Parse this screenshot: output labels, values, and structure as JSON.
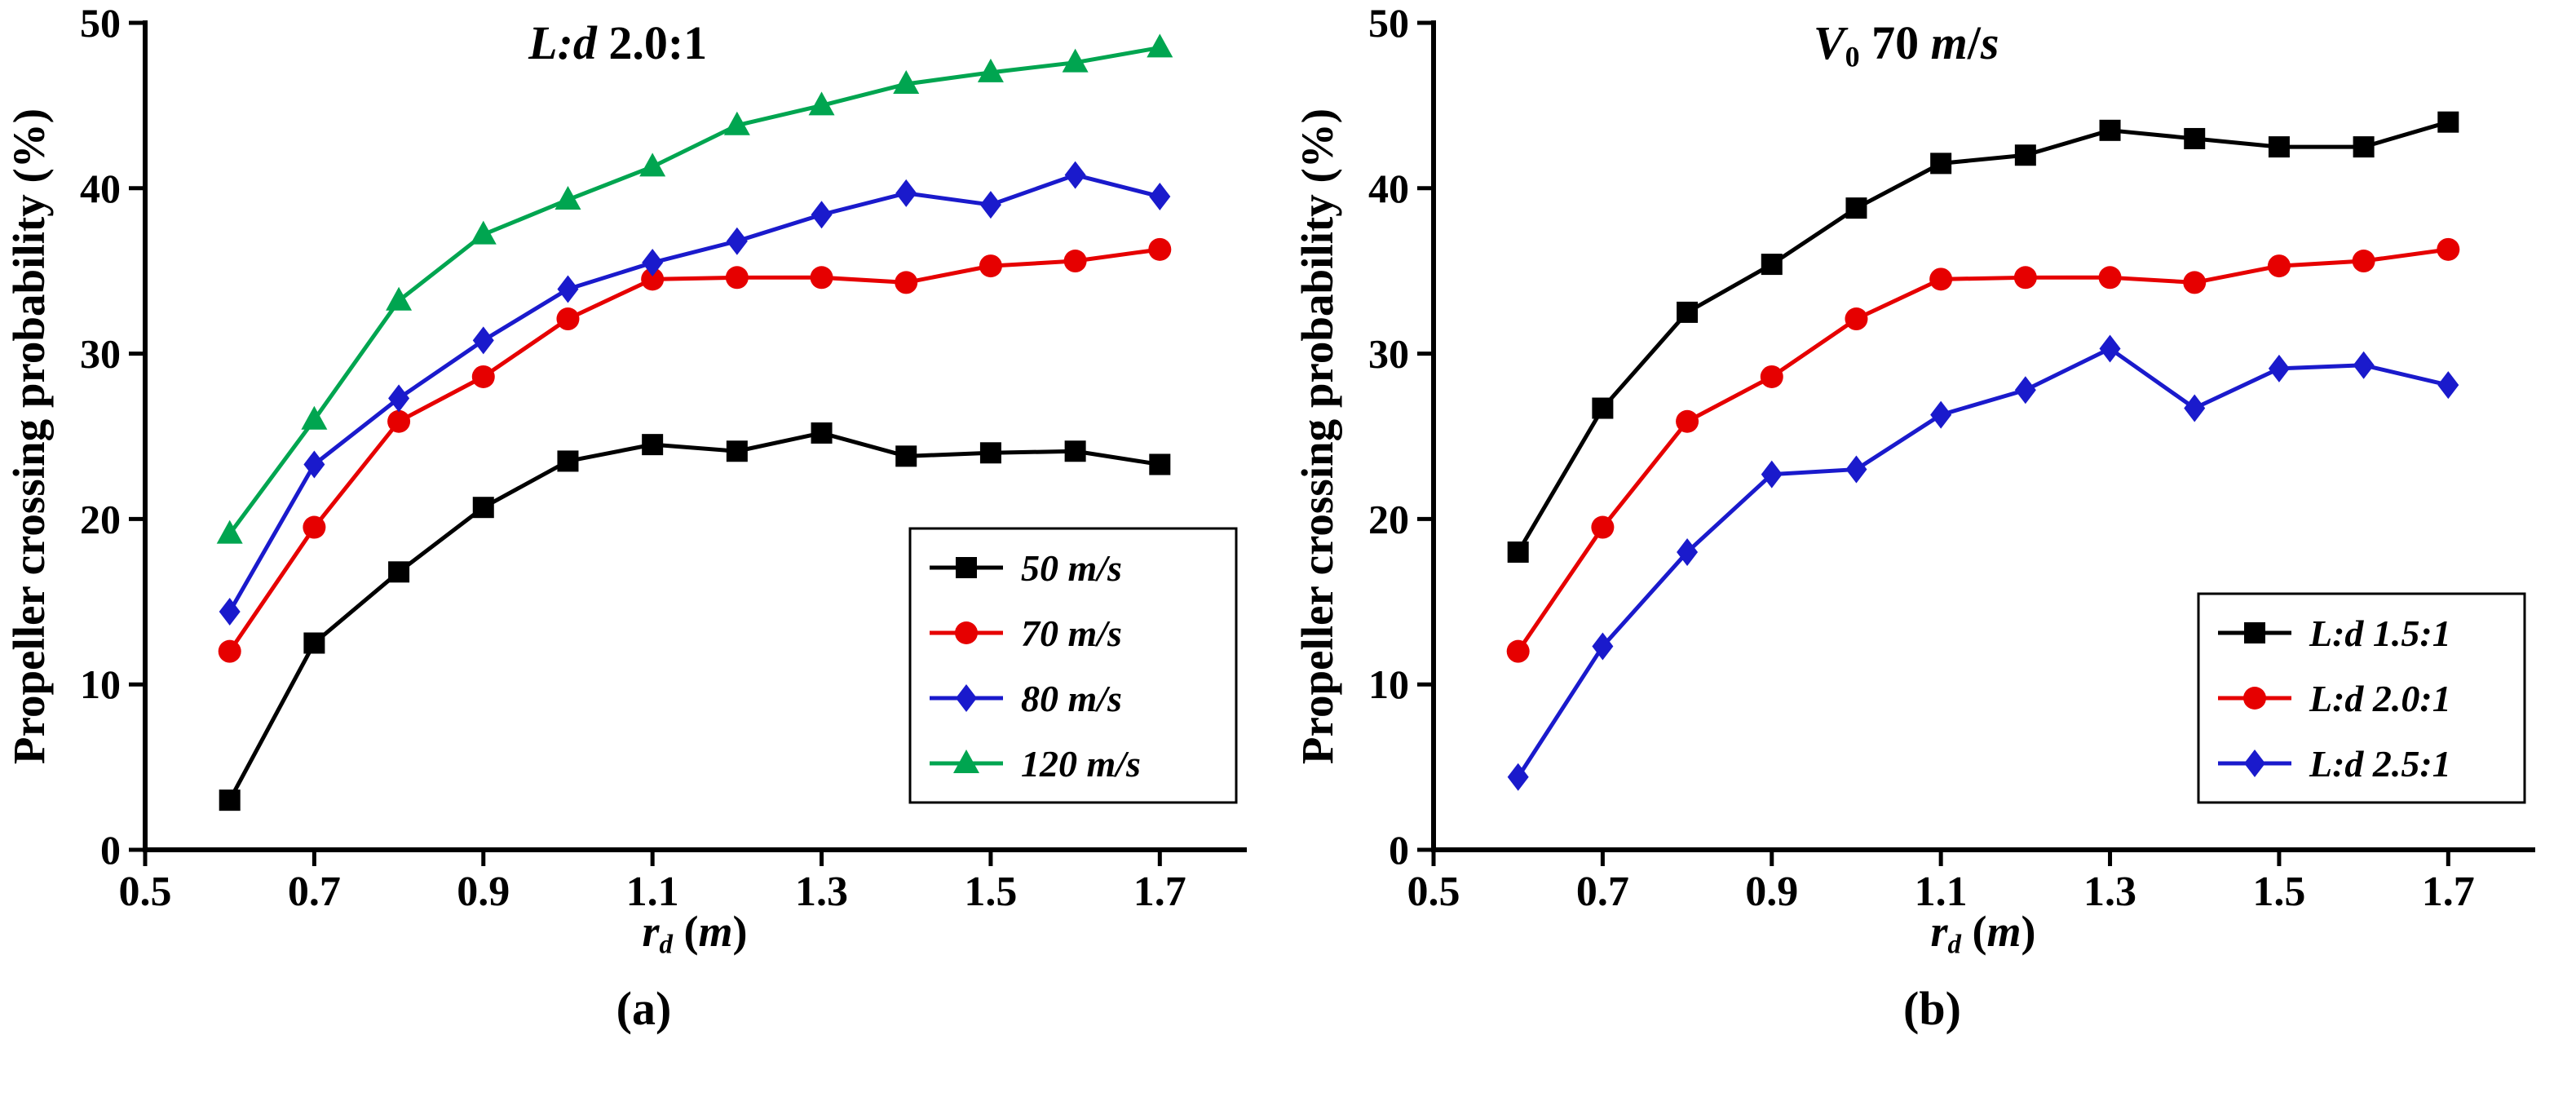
{
  "figure": {
    "sublabels": [
      "(a)",
      "(b)"
    ]
  },
  "chart_data": [
    {
      "type": "line",
      "title": "L:d  2.0:1",
      "title_segments": [
        {
          "t": "L:d",
          "i": true
        },
        {
          "t": "  2.0:1"
        }
      ],
      "xlabel": "r_d (m)",
      "xlabel_segments": [
        {
          "t": "r",
          "i": true
        },
        {
          "t": "d",
          "i": true,
          "sub": true
        },
        {
          "t": " ("
        },
        {
          "t": "m",
          "i": true
        },
        {
          "t": ")"
        }
      ],
      "ylabel": "Propeller crossing probability (%)",
      "xlim": [
        0.5,
        1.8
      ],
      "ylim": [
        0,
        50
      ],
      "xticks": [
        0.5,
        0.7,
        0.9,
        1.1,
        1.3,
        1.5,
        1.7
      ],
      "yticks": [
        0,
        10,
        20,
        30,
        40,
        50
      ],
      "grid": false,
      "legend_position": "lower-right",
      "x": [
        0.6,
        0.7,
        0.8,
        0.9,
        1.0,
        1.1,
        1.2,
        1.3,
        1.4,
        1.5,
        1.6,
        1.7
      ],
      "series": [
        {
          "name": "50 m/s",
          "color": "#000000",
          "marker": "square",
          "values": [
            3.0,
            12.5,
            16.8,
            20.7,
            23.5,
            24.5,
            24.1,
            25.2,
            23.8,
            24.0,
            24.1,
            23.3
          ]
        },
        {
          "name": "70 m/s",
          "color": "#e60000",
          "marker": "circle",
          "values": [
            12.0,
            19.5,
            25.9,
            28.6,
            32.1,
            34.5,
            34.6,
            34.6,
            34.3,
            35.3,
            35.6,
            36.3
          ]
        },
        {
          "name": "80 m/s",
          "color": "#1a1acc",
          "marker": "diamond",
          "values": [
            14.4,
            23.3,
            27.3,
            30.8,
            33.9,
            35.5,
            36.8,
            38.4,
            39.7,
            39.0,
            40.8,
            39.5
          ]
        },
        {
          "name": "120 m/s",
          "color": "#00a550",
          "marker": "triangle",
          "values": [
            19.1,
            26.0,
            33.2,
            37.2,
            39.3,
            41.3,
            43.8,
            45.0,
            46.3,
            47.0,
            47.6,
            48.5
          ]
        }
      ]
    },
    {
      "type": "line",
      "title": "V0  70 m/s",
      "title_segments": [
        {
          "t": "V",
          "i": true
        },
        {
          "t": "0",
          "sub": true
        },
        {
          "t": "  70 "
        },
        {
          "t": "m",
          "i": true
        },
        {
          "t": "/"
        },
        {
          "t": "s",
          "i": true
        }
      ],
      "xlabel": "r_d (m)",
      "xlabel_segments": [
        {
          "t": "r",
          "i": true
        },
        {
          "t": "d",
          "i": true,
          "sub": true
        },
        {
          "t": " ("
        },
        {
          "t": "m",
          "i": true
        },
        {
          "t": ")"
        }
      ],
      "ylabel": "Propeller crossing probability (%)",
      "xlim": [
        0.5,
        1.8
      ],
      "ylim": [
        0,
        50
      ],
      "xticks": [
        0.5,
        0.7,
        0.9,
        1.1,
        1.3,
        1.5,
        1.7
      ],
      "yticks": [
        0,
        10,
        20,
        30,
        40,
        50
      ],
      "grid": false,
      "legend_position": "lower-right",
      "x": [
        0.6,
        0.7,
        0.8,
        0.9,
        1.0,
        1.1,
        1.2,
        1.3,
        1.4,
        1.5,
        1.6,
        1.7
      ],
      "series": [
        {
          "name": "L:d 1.5:1",
          "color": "#000000",
          "marker": "square",
          "values": [
            18.0,
            26.7,
            32.5,
            35.4,
            38.8,
            41.5,
            42.0,
            43.5,
            43.0,
            42.5,
            42.5,
            44.0
          ]
        },
        {
          "name": "L:d 2.0:1",
          "color": "#e60000",
          "marker": "circle",
          "values": [
            12.0,
            19.5,
            25.9,
            28.6,
            32.1,
            34.5,
            34.6,
            34.6,
            34.3,
            35.3,
            35.6,
            36.3
          ]
        },
        {
          "name": "L:d 2.5:1",
          "color": "#1a1acc",
          "marker": "diamond",
          "values": [
            4.4,
            12.3,
            18.0,
            22.7,
            23.0,
            26.3,
            27.8,
            30.3,
            26.7,
            29.1,
            29.3,
            28.1
          ]
        }
      ]
    }
  ]
}
